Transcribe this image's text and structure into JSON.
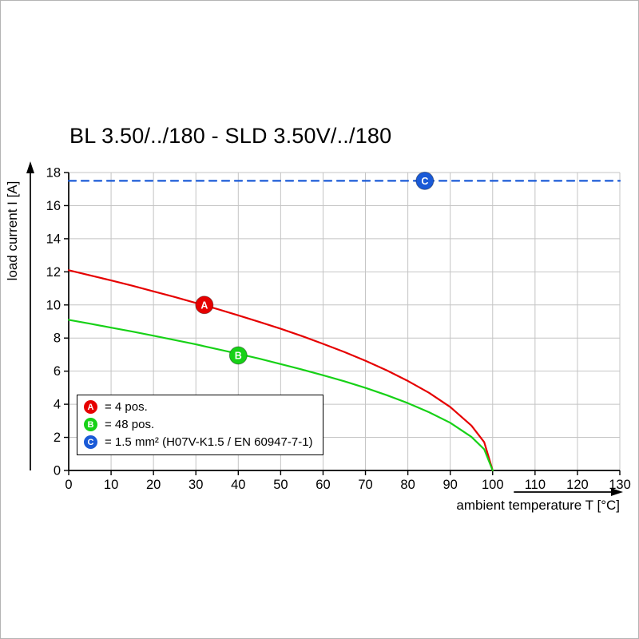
{
  "page": {
    "background": "#ffffff",
    "border_color": "#b4b4b4"
  },
  "chart_data": {
    "type": "line",
    "title": "BL 3.50/../180 - SLD 3.50V/../180",
    "xlabel": "ambient temperature T [°C]",
    "ylabel": "load current I [A]",
    "xlim": [
      0,
      130
    ],
    "ylim": [
      0,
      18
    ],
    "xticks": [
      0,
      10,
      20,
      30,
      40,
      50,
      60,
      70,
      80,
      90,
      100,
      110,
      120,
      130
    ],
    "yticks": [
      0,
      2,
      4,
      6,
      8,
      10,
      12,
      14,
      16,
      18
    ],
    "grid": true,
    "grid_color": "#c4c4c4",
    "axis_color": "#000000",
    "legend_position": "bottom-left-inside",
    "series": [
      {
        "name": "A",
        "legend": "= 4 pos.",
        "color": "#e60000",
        "style": "solid",
        "marker_at": [
          32,
          10.0
        ],
        "points": [
          [
            0,
            12.1
          ],
          [
            5,
            11.79
          ],
          [
            10,
            11.48
          ],
          [
            15,
            11.16
          ],
          [
            20,
            10.82
          ],
          [
            25,
            10.48
          ],
          [
            30,
            10.12
          ],
          [
            35,
            9.76
          ],
          [
            40,
            9.37
          ],
          [
            45,
            8.97
          ],
          [
            50,
            8.56
          ],
          [
            55,
            8.12
          ],
          [
            60,
            7.65
          ],
          [
            65,
            7.16
          ],
          [
            70,
            6.63
          ],
          [
            75,
            6.05
          ],
          [
            80,
            5.41
          ],
          [
            85,
            4.69
          ],
          [
            90,
            3.83
          ],
          [
            95,
            2.71
          ],
          [
            98,
            1.71
          ],
          [
            100,
            0
          ]
        ]
      },
      {
        "name": "B",
        "legend": "= 48 pos.",
        "color": "#17d117",
        "style": "solid",
        "marker_at": [
          40,
          6.95
        ],
        "points": [
          [
            0,
            9.1
          ],
          [
            5,
            8.87
          ],
          [
            10,
            8.63
          ],
          [
            15,
            8.39
          ],
          [
            20,
            8.14
          ],
          [
            25,
            7.88
          ],
          [
            30,
            7.62
          ],
          [
            35,
            7.33
          ],
          [
            40,
            7.05
          ],
          [
            45,
            6.75
          ],
          [
            50,
            6.43
          ],
          [
            55,
            6.1
          ],
          [
            60,
            5.75
          ],
          [
            65,
            5.39
          ],
          [
            70,
            4.99
          ],
          [
            75,
            4.55
          ],
          [
            80,
            4.07
          ],
          [
            85,
            3.52
          ],
          [
            90,
            2.88
          ],
          [
            95,
            2.03
          ],
          [
            98,
            1.28
          ],
          [
            100,
            0
          ]
        ]
      },
      {
        "name": "C",
        "legend": "= 1.5 mm² (H07V-K1.5 / EN 60947-7-1)",
        "color": "#1a5ad7",
        "style": "dashed",
        "marker_at": [
          84,
          17.5
        ],
        "points": [
          [
            0,
            17.5
          ],
          [
            130,
            17.5
          ]
        ]
      }
    ]
  }
}
